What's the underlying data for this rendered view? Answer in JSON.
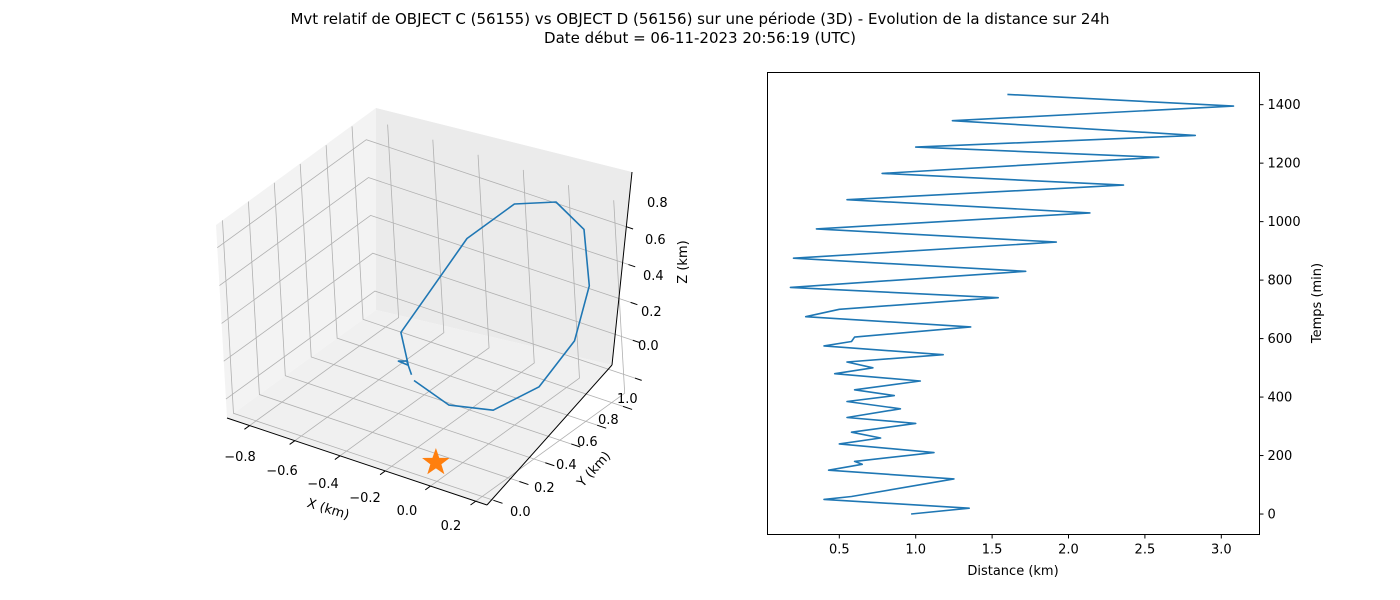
{
  "figure": {
    "title_line1": "Mvt relatif de OBJECT C (56155) vs OBJECT D (56156) sur une période (3D) - Evolution de la distance sur 24h",
    "title_line2": "Date début = 06-11-2023 20:56:19 (UTC)"
  },
  "colors": {
    "series": "#1f77b4",
    "marker": "#ff7f0e",
    "pane": "#f2f2f2",
    "grid": "#b0b0b0"
  },
  "chart_data": [
    {
      "type": "line3d",
      "xlabel": "X (km)",
      "ylabel": "Y (km)",
      "zlabel": "Z (km)",
      "x_ticks": [
        "−0.8",
        "−0.6",
        "−0.4",
        "−0.2",
        "0.0",
        "0.2"
      ],
      "y_ticks": [
        "0.0",
        "0.2",
        "0.4",
        "0.6",
        "0.8",
        "1.0"
      ],
      "z_ticks": [
        "0.0",
        "0.2",
        "0.4",
        "0.6",
        "0.8"
      ],
      "xlim": [
        -0.9,
        0.25
      ],
      "ylim": [
        -0.05,
        1.1
      ],
      "zlim": [
        -0.1,
        0.92
      ],
      "grid": true,
      "marker": {
        "shape": "star",
        "x": 0.0,
        "y": 0.0,
        "z": 0.0
      },
      "series": [
        {
          "points": [
            [
              -0.44,
              0.58,
              0.0
            ],
            [
              -0.47,
              0.6,
              0.05
            ],
            [
              -0.52,
              0.62,
              0.02
            ],
            [
              -0.44,
              0.56,
              0.06
            ],
            [
              -0.55,
              0.7,
              0.12
            ],
            [
              -0.48,
              0.8,
              0.3
            ],
            [
              -0.38,
              0.95,
              0.56
            ],
            [
              -0.2,
              1.02,
              0.78
            ],
            [
              0.0,
              1.0,
              0.88
            ],
            [
              0.15,
              0.95,
              0.82
            ],
            [
              0.22,
              0.85,
              0.6
            ],
            [
              0.2,
              0.75,
              0.35
            ],
            [
              0.12,
              0.6,
              0.15
            ],
            [
              -0.02,
              0.48,
              0.03
            ],
            [
              -0.2,
              0.45,
              0.0
            ],
            [
              -0.4,
              0.53,
              0.01
            ]
          ]
        }
      ]
    },
    {
      "type": "line",
      "xlabel": "Distance (km)",
      "ylabel": "Temps (min)",
      "xlim": [
        0.03,
        3.25
      ],
      "ylim": [
        -70,
        1510
      ],
      "x_ticks": [
        0.5,
        1.0,
        1.5,
        2.0,
        2.5,
        3.0
      ],
      "y_ticks": [
        0,
        200,
        400,
        600,
        800,
        1000,
        1200,
        1400
      ],
      "y_axis_side": "right",
      "grid": false,
      "series": [
        {
          "points": [
            [
              0.97,
              0
            ],
            [
              1.35,
              20
            ],
            [
              0.4,
              50
            ],
            [
              0.58,
              60
            ],
            [
              1.25,
              120
            ],
            [
              0.43,
              150
            ],
            [
              0.65,
              170
            ],
            [
              0.6,
              180
            ],
            [
              1.12,
              210
            ],
            [
              0.5,
              240
            ],
            [
              0.77,
              260
            ],
            [
              0.58,
              280
            ],
            [
              1.0,
              310
            ],
            [
              0.55,
              330
            ],
            [
              0.9,
              360
            ],
            [
              0.55,
              385
            ],
            [
              0.86,
              405
            ],
            [
              0.6,
              425
            ],
            [
              1.03,
              455
            ],
            [
              0.47,
              480
            ],
            [
              0.72,
              500
            ],
            [
              0.55,
              520
            ],
            [
              1.18,
              545
            ],
            [
              0.4,
              575
            ],
            [
              0.58,
              590
            ],
            [
              0.6,
              605
            ],
            [
              1.36,
              640
            ],
            [
              0.28,
              675
            ],
            [
              0.5,
              700
            ],
            [
              1.54,
              740
            ],
            [
              0.18,
              775
            ],
            [
              1.72,
              830
            ],
            [
              0.2,
              875
            ],
            [
              1.92,
              930
            ],
            [
              0.35,
              975
            ],
            [
              2.14,
              1030
            ],
            [
              0.55,
              1075
            ],
            [
              2.36,
              1125
            ],
            [
              0.78,
              1165
            ],
            [
              2.59,
              1220
            ],
            [
              1.0,
              1255
            ],
            [
              2.83,
              1295
            ],
            [
              1.24,
              1345
            ],
            [
              3.08,
              1395
            ],
            [
              1.6,
              1435
            ]
          ]
        }
      ]
    }
  ]
}
